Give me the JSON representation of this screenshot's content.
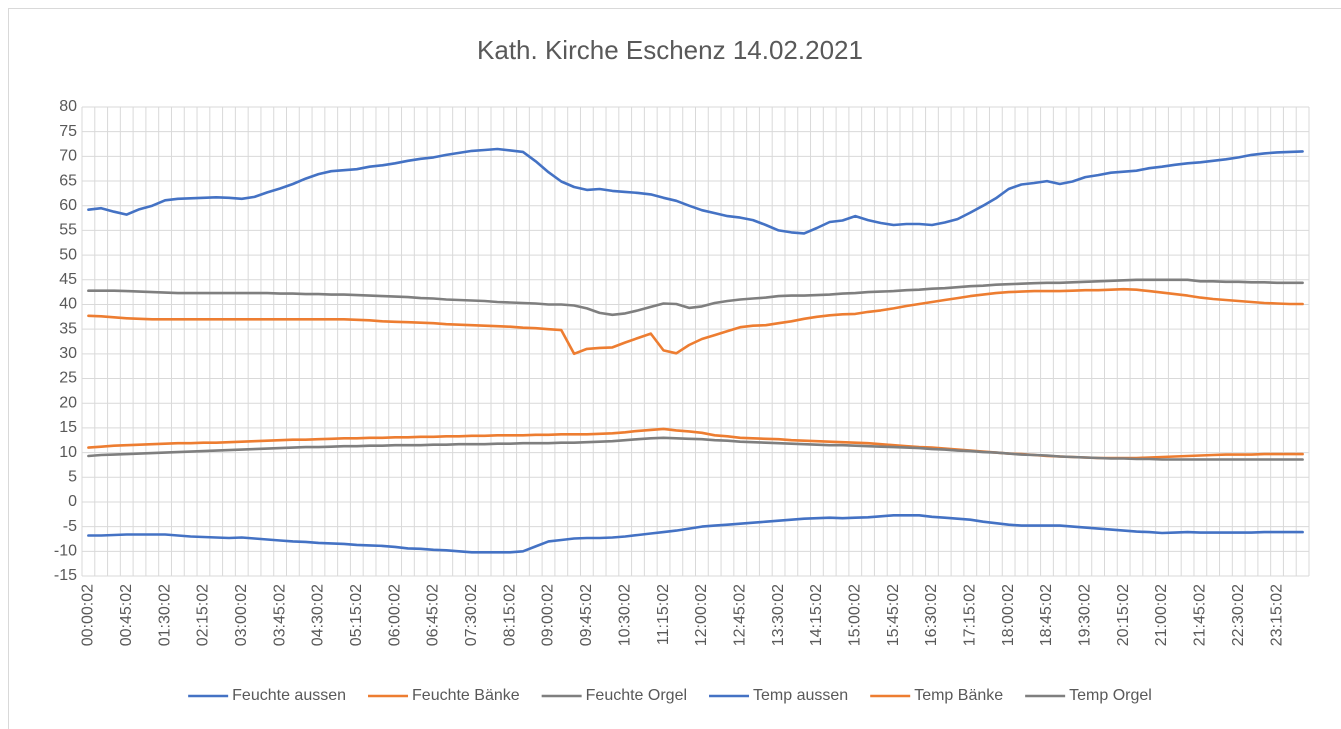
{
  "chart_data": {
    "type": "line",
    "title": "Kath. Kirche Eschenz 14.02.2021",
    "categories": [
      "00:00:02",
      null,
      null,
      "00:45:02",
      null,
      null,
      "01:30:02",
      null,
      null,
      "02:15:02",
      null,
      null,
      "03:00:02",
      null,
      null,
      "03:45:02",
      null,
      null,
      "04:30:02",
      null,
      null,
      "05:15:02",
      null,
      null,
      "06:00:02",
      null,
      null,
      "06:45:02",
      null,
      null,
      "07:30:02",
      null,
      null,
      "08:15:02",
      null,
      null,
      "09:00:02",
      null,
      null,
      "09:45:02",
      null,
      null,
      "10:30:02",
      null,
      null,
      "11:15:02",
      null,
      null,
      "12:00:02",
      null,
      null,
      "12:45:02",
      null,
      null,
      "13:30:02",
      null,
      null,
      "14:15:02",
      null,
      null,
      "15:00:02",
      null,
      null,
      "15:45:02",
      null,
      null,
      "16:30:02",
      null,
      null,
      "17:15:02",
      null,
      null,
      "18:00:02",
      null,
      null,
      "18:45:02",
      null,
      null,
      "19:30:02",
      null,
      null,
      "20:15:02",
      null,
      null,
      "21:00:02",
      null,
      null,
      "21:45:02",
      null,
      null,
      "22:30:02",
      null,
      null,
      "23:15:02",
      null,
      null
    ],
    "series": [
      {
        "name": "Feuchte aussen",
        "color": "#4472c4",
        "values": [
          59.2,
          59.5,
          58.8,
          58.2,
          59.3,
          60.0,
          61.1,
          61.4,
          61.5,
          61.6,
          61.7,
          61.6,
          61.4,
          61.8,
          62.7,
          63.5,
          64.4,
          65.5,
          66.4,
          67.0,
          67.2,
          67.4,
          67.9,
          68.2,
          68.6,
          69.1,
          69.5,
          69.8,
          70.3,
          70.7,
          71.1,
          71.3,
          71.5,
          71.2,
          70.9,
          69.0,
          66.8,
          64.9,
          63.8,
          63.2,
          63.4,
          63.0,
          62.8,
          62.6,
          62.3,
          61.6,
          61.0,
          60.0,
          59.1,
          58.5,
          57.9,
          57.6,
          57.1,
          56.1,
          55.0,
          54.6,
          54.4,
          55.5,
          56.7,
          57.0,
          57.9,
          57.1,
          56.5,
          56.1,
          56.3,
          56.3,
          56.1,
          56.6,
          57.3,
          58.6,
          60.0,
          61.5,
          63.4,
          64.3,
          64.6,
          65.0,
          64.4,
          64.9,
          65.8,
          66.2,
          66.7,
          66.9,
          67.1,
          67.6,
          67.9,
          68.3,
          68.6,
          68.8,
          69.1,
          69.4,
          69.8,
          70.3,
          70.6,
          70.8,
          70.9,
          71.0
        ]
      },
      {
        "name": "Feuchte Bänke",
        "color": "#ed7d31",
        "values": [
          37.7,
          37.6,
          37.4,
          37.2,
          37.1,
          37.0,
          37.0,
          37.0,
          37.0,
          37.0,
          37.0,
          37.0,
          37.0,
          37.0,
          37.0,
          37.0,
          37.0,
          37.0,
          37.0,
          37.0,
          37.0,
          36.9,
          36.8,
          36.6,
          36.5,
          36.4,
          36.3,
          36.2,
          36.0,
          35.9,
          35.8,
          35.7,
          35.6,
          35.5,
          35.3,
          35.2,
          35.0,
          34.8,
          30.0,
          31.0,
          31.2,
          31.3,
          32.3,
          33.2,
          34.1,
          30.7,
          30.1,
          31.8,
          33.0,
          33.8,
          34.6,
          35.4,
          35.7,
          35.8,
          36.2,
          36.6,
          37.1,
          37.5,
          37.8,
          38.0,
          38.1,
          38.5,
          38.8,
          39.2,
          39.7,
          40.1,
          40.5,
          40.9,
          41.3,
          41.7,
          42.0,
          42.3,
          42.5,
          42.6,
          42.7,
          42.7,
          42.7,
          42.8,
          42.9,
          42.9,
          43.0,
          43.1,
          43.0,
          42.7,
          42.4,
          42.1,
          41.8,
          41.4,
          41.1,
          40.9,
          40.7,
          40.5,
          40.3,
          40.2,
          40.1,
          40.1
        ]
      },
      {
        "name": "Feuchte Orgel",
        "color": "#7f7f7f",
        "values": [
          42.8,
          42.8,
          42.8,
          42.7,
          42.6,
          42.5,
          42.4,
          42.3,
          42.3,
          42.3,
          42.3,
          42.3,
          42.3,
          42.3,
          42.3,
          42.2,
          42.2,
          42.1,
          42.1,
          42.0,
          42.0,
          41.9,
          41.8,
          41.7,
          41.6,
          41.5,
          41.3,
          41.2,
          41.0,
          40.9,
          40.8,
          40.7,
          40.5,
          40.4,
          40.3,
          40.2,
          40.0,
          40.0,
          39.8,
          39.2,
          38.3,
          37.9,
          38.2,
          38.8,
          39.5,
          40.2,
          40.1,
          39.3,
          39.6,
          40.3,
          40.7,
          41.0,
          41.2,
          41.4,
          41.7,
          41.8,
          41.8,
          41.9,
          42.0,
          42.2,
          42.3,
          42.5,
          42.6,
          42.7,
          42.9,
          43.0,
          43.2,
          43.3,
          43.5,
          43.7,
          43.8,
          44.0,
          44.1,
          44.2,
          44.3,
          44.4,
          44.4,
          44.5,
          44.6,
          44.7,
          44.8,
          44.9,
          45.0,
          45.0,
          45.0,
          45.0,
          45.0,
          44.7,
          44.7,
          44.6,
          44.6,
          44.5,
          44.5,
          44.4,
          44.4,
          44.4
        ]
      },
      {
        "name": "Temp aussen",
        "color": "#4472c4",
        "values": [
          -6.8,
          -6.8,
          -6.7,
          -6.6,
          -6.6,
          -6.6,
          -6.6,
          -6.8,
          -7.0,
          -7.1,
          -7.2,
          -7.3,
          -7.2,
          -7.4,
          -7.6,
          -7.8,
          -8.0,
          -8.1,
          -8.3,
          -8.4,
          -8.5,
          -8.7,
          -8.8,
          -8.9,
          -9.1,
          -9.4,
          -9.5,
          -9.7,
          -9.8,
          -10.0,
          -10.2,
          -10.2,
          -10.2,
          -10.2,
          -10.0,
          -9.0,
          -8.0,
          -7.7,
          -7.4,
          -7.3,
          -7.3,
          -7.2,
          -7.0,
          -6.7,
          -6.4,
          -6.1,
          -5.8,
          -5.4,
          -5.0,
          -4.8,
          -4.6,
          -4.4,
          -4.2,
          -4.0,
          -3.8,
          -3.6,
          -3.4,
          -3.3,
          -3.2,
          -3.3,
          -3.2,
          -3.1,
          -2.9,
          -2.7,
          -2.7,
          -2.7,
          -3.0,
          -3.2,
          -3.4,
          -3.6,
          -4.0,
          -4.3,
          -4.6,
          -4.8,
          -4.8,
          -4.8,
          -4.8,
          -5.0,
          -5.2,
          -5.4,
          -5.6,
          -5.8,
          -6.0,
          -6.1,
          -6.3,
          -6.2,
          -6.1,
          -6.2,
          -6.2,
          -6.2,
          -6.2,
          -6.2,
          -6.1,
          -6.1,
          -6.1,
          -6.1
        ]
      },
      {
        "name": "Temp Bänke",
        "color": "#ed7d31",
        "values": [
          11.0,
          11.2,
          11.4,
          11.5,
          11.6,
          11.7,
          11.8,
          11.9,
          11.9,
          12.0,
          12.0,
          12.1,
          12.2,
          12.3,
          12.4,
          12.5,
          12.6,
          12.6,
          12.7,
          12.8,
          12.9,
          12.9,
          13.0,
          13.0,
          13.1,
          13.1,
          13.2,
          13.2,
          13.3,
          13.3,
          13.4,
          13.4,
          13.5,
          13.5,
          13.5,
          13.6,
          13.6,
          13.7,
          13.7,
          13.7,
          13.8,
          13.9,
          14.1,
          14.4,
          14.6,
          14.8,
          14.5,
          14.3,
          14.0,
          13.5,
          13.3,
          13.0,
          12.9,
          12.8,
          12.7,
          12.5,
          12.4,
          12.3,
          12.2,
          12.1,
          12.0,
          11.9,
          11.7,
          11.5,
          11.3,
          11.1,
          11.0,
          10.8,
          10.6,
          10.4,
          10.2,
          10.0,
          9.8,
          9.7,
          9.5,
          9.3,
          9.2,
          9.1,
          9.0,
          8.9,
          8.9,
          8.9,
          8.9,
          9.0,
          9.1,
          9.2,
          9.3,
          9.4,
          9.5,
          9.6,
          9.6,
          9.6,
          9.7,
          9.7,
          9.7,
          9.7
        ]
      },
      {
        "name": "Temp Orgel",
        "color": "#7f7f7f",
        "values": [
          9.3,
          9.5,
          9.6,
          9.7,
          9.8,
          9.9,
          10.0,
          10.1,
          10.2,
          10.3,
          10.4,
          10.5,
          10.6,
          10.7,
          10.8,
          10.9,
          11.0,
          11.1,
          11.1,
          11.2,
          11.3,
          11.3,
          11.4,
          11.4,
          11.5,
          11.5,
          11.5,
          11.6,
          11.6,
          11.7,
          11.7,
          11.7,
          11.8,
          11.8,
          11.9,
          11.9,
          11.9,
          12.0,
          12.0,
          12.1,
          12.2,
          12.3,
          12.5,
          12.7,
          12.9,
          13.0,
          12.9,
          12.8,
          12.7,
          12.5,
          12.4,
          12.2,
          12.1,
          12.0,
          11.9,
          11.8,
          11.7,
          11.6,
          11.5,
          11.5,
          11.4,
          11.3,
          11.2,
          11.1,
          11.0,
          10.9,
          10.7,
          10.6,
          10.4,
          10.3,
          10.1,
          10.0,
          9.8,
          9.6,
          9.5,
          9.4,
          9.2,
          9.1,
          9.0,
          8.9,
          8.8,
          8.8,
          8.7,
          8.7,
          8.6,
          8.6,
          8.6,
          8.6,
          8.6,
          8.6,
          8.6,
          8.6,
          8.6,
          8.6,
          8.6,
          8.6
        ]
      }
    ],
    "ylim": [
      -15,
      80
    ],
    "yticks": [
      -15,
      -10,
      -5,
      0,
      5,
      10,
      15,
      20,
      25,
      30,
      35,
      40,
      45,
      50,
      55,
      60,
      65,
      70,
      75,
      80
    ],
    "grid": true,
    "legend": "bottom"
  }
}
